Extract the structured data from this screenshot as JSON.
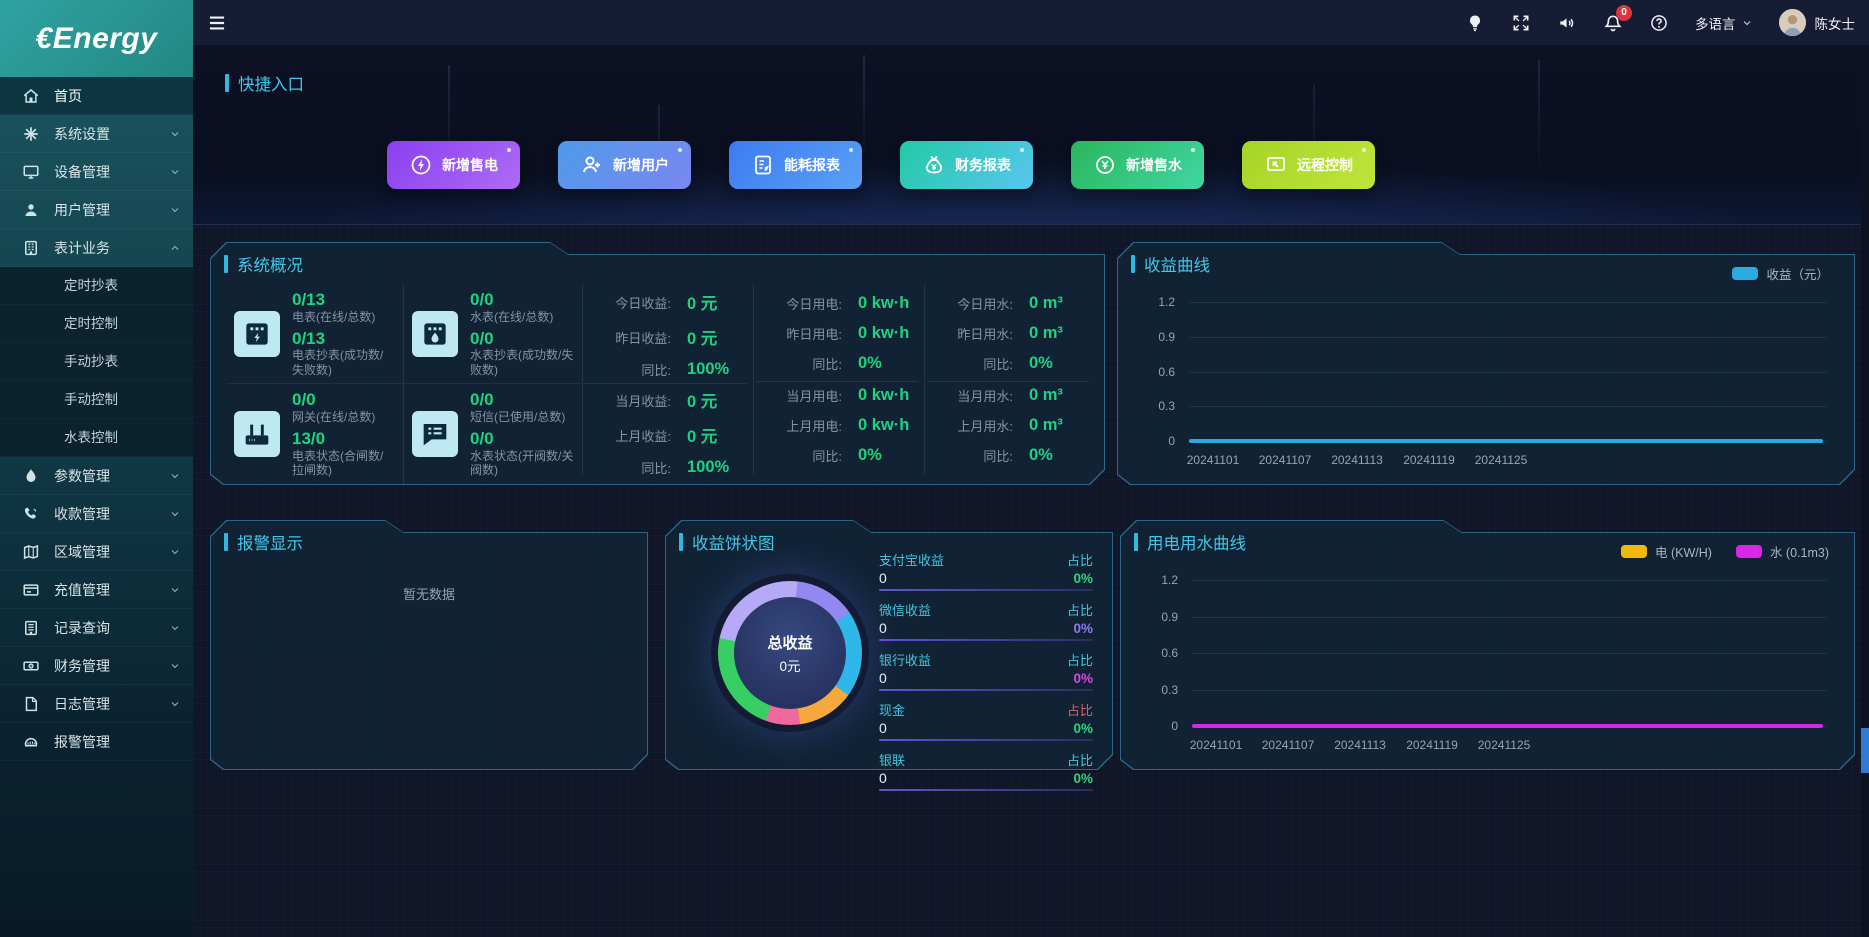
{
  "brand": {
    "logo": "€Energy"
  },
  "topbar": {
    "language_label": "多语言",
    "user_name": "陈女士",
    "notification_count": "0",
    "icons": [
      "bulb-icon",
      "fullscreen-icon",
      "sound-icon",
      "bell-icon",
      "help-icon"
    ]
  },
  "sidebar": {
    "items": [
      {
        "label": "首页",
        "icon": "home-icon",
        "active": true
      },
      {
        "label": "系统设置",
        "icon": "settings-icon",
        "chevron": "down"
      },
      {
        "label": "设备管理",
        "icon": "device-icon",
        "chevron": "down"
      },
      {
        "label": "用户管理",
        "icon": "user-icon",
        "chevron": "down"
      },
      {
        "label": "表计业务",
        "icon": "meter-icon",
        "chevron": "up",
        "expanded": true,
        "children": [
          "定时抄表",
          "定时控制",
          "手动抄表",
          "手动控制",
          "水表控制"
        ]
      },
      {
        "label": "参数管理",
        "icon": "param-icon",
        "chevron": "down"
      },
      {
        "label": "收款管理",
        "icon": "collection-icon",
        "chevron": "down"
      },
      {
        "label": "区域管理",
        "icon": "region-icon",
        "chevron": "down"
      },
      {
        "label": "充值管理",
        "icon": "recharge-icon",
        "chevron": "down"
      },
      {
        "label": "记录查询",
        "icon": "records-icon",
        "chevron": "down"
      },
      {
        "label": "财务管理",
        "icon": "finance-icon",
        "chevron": "down"
      },
      {
        "label": "日志管理",
        "icon": "log-icon",
        "chevron": "down"
      },
      {
        "label": "报警管理",
        "icon": "alarm-icon"
      }
    ]
  },
  "quick_entry": {
    "title": "快捷入口",
    "buttons": [
      {
        "label": "新增售电",
        "icon": "lightning-icon",
        "g1": "#8A3FF0",
        "g2": "#AE6BF5"
      },
      {
        "label": "新增用户",
        "icon": "user-plus-icon",
        "g1": "#4E9BE8",
        "g2": "#7B86F2"
      },
      {
        "label": "能耗报表",
        "icon": "report-icon",
        "g1": "#3C7BF0",
        "g2": "#5AA0F5"
      },
      {
        "label": "财务报表",
        "icon": "moneybag-icon",
        "g1": "#23C9A5",
        "g2": "#58C6F0"
      },
      {
        "label": "新增售水",
        "icon": "coin-icon",
        "g1": "#2BB65C",
        "g2": "#3FD6A3"
      },
      {
        "label": "远程控制",
        "icon": "remote-icon",
        "g1": "#A6D428",
        "g2": "#BFE53A"
      }
    ]
  },
  "panels": {
    "overview": {
      "title": "系统概况",
      "meters": [
        {
          "icon": "electric-meter-icon",
          "stats": [
            {
              "value": "0/13",
              "label": "电表(在线/总数)"
            },
            {
              "value": "0/13",
              "label": "电表抄表(成功数/失败数)"
            }
          ]
        },
        {
          "icon": "water-meter-icon",
          "stats": [
            {
              "value": "0/0",
              "label": "水表(在线/总数)"
            },
            {
              "value": "0/0",
              "label": "水表抄表(成功数/失败数)"
            }
          ]
        },
        {
          "icon": "gateway-icon",
          "stats": [
            {
              "value": "0/0",
              "label": "网关(在线/总数)"
            },
            {
              "value": "13/0",
              "label": "电表状态(合闸数/拉闸数)"
            }
          ]
        },
        {
          "icon": "sms-icon",
          "stats": [
            {
              "value": "0/0",
              "label": "短信(已使用/总数)"
            },
            {
              "value": "0/0",
              "label": "水表状态(开阀数/关阀数)"
            }
          ]
        }
      ],
      "stat_columns": [
        {
          "group1": [
            [
              "今日收益:",
              "0 元"
            ],
            [
              "昨日收益:",
              "0 元"
            ],
            [
              "同比:",
              "100%"
            ]
          ],
          "group2": [
            [
              "当月收益:",
              "0 元"
            ],
            [
              "上月收益:",
              "0 元"
            ],
            [
              "同比:",
              "100%"
            ]
          ]
        },
        {
          "group1": [
            [
              "今日用电:",
              "0 kw·h"
            ],
            [
              "昨日用电:",
              "0 kw·h"
            ],
            [
              "同比:",
              "0%"
            ]
          ],
          "group2": [
            [
              "当月用电:",
              "0 kw·h"
            ],
            [
              "上月用电:",
              "0 kw·h"
            ],
            [
              "同比:",
              "0%"
            ]
          ]
        },
        {
          "group1": [
            [
              "今日用水:",
              "0 m³"
            ],
            [
              "昨日用水:",
              "0 m³"
            ],
            [
              "同比:",
              "0%"
            ]
          ],
          "group2": [
            [
              "当月用水:",
              "0 m³"
            ],
            [
              "上月用水:",
              "0 m³"
            ],
            [
              "同比:",
              "0%"
            ]
          ]
        }
      ]
    },
    "revenue": {
      "title": "收益曲线",
      "chart": {
        "type": "line",
        "legend": [
          {
            "label": "收益（元）",
            "color": "#29ABE2"
          }
        ],
        "y_ticks": [
          "1.2",
          "0.9",
          "0.6",
          "0.3",
          "0"
        ],
        "x_ticks": [
          "20241101",
          "20241107",
          "20241113",
          "20241119",
          "20241125"
        ],
        "line_color": "#29ABE2",
        "series": [
          {
            "name": "收益（元）",
            "values": [
              0,
              0,
              0,
              0,
              0
            ]
          }
        ],
        "ylim": [
          0,
          1.2
        ]
      }
    },
    "alarm": {
      "title": "报警显示",
      "empty_text": "暂无数据"
    },
    "pie": {
      "title": "收益饼状图",
      "center_label": "总收益",
      "center_value": "0元",
      "ring_from": "-40deg",
      "ring_segments": [
        [
          "#B6A9F6",
          46
        ],
        [
          "#9188F0",
          96
        ],
        [
          "#30B7EA",
          166
        ],
        [
          "#F5A83B",
          212
        ],
        [
          "#F0699C",
          240
        ],
        [
          "#37CF63",
          322
        ],
        [
          "#B6A9F6",
          360
        ]
      ],
      "rows": [
        {
          "label": "支付宝收益",
          "value": "0",
          "ratio_label": "占比",
          "ratio": "0%",
          "label_color": "#3EC6E0",
          "ratio_label_color": "#3EC6E0",
          "ratio_color": "#2BD67B"
        },
        {
          "label": "微信收益",
          "value": "0",
          "ratio_label": "占比",
          "ratio": "0%",
          "label_color": "#3EC6E0",
          "ratio_label_color": "#3EC6E0",
          "ratio_color": "#8F7BF0"
        },
        {
          "label": "银行收益",
          "value": "0",
          "ratio_label": "占比",
          "ratio": "0%",
          "label_color": "#3EC6E0",
          "ratio_label_color": "#3EC6E0",
          "ratio_color": "#D948E8"
        },
        {
          "label": "现金",
          "value": "0",
          "ratio_label": "占比",
          "ratio": "0%",
          "label_color": "#3EC6E0",
          "ratio_label_color": "#E06060",
          "ratio_color": "#2BD67B"
        },
        {
          "label": "银联",
          "value": "0",
          "ratio_label": "占比",
          "ratio": "0%",
          "label_color": "#3EC6E0",
          "ratio_label_color": "#3EC6E0",
          "ratio_color": "#2BD67B"
        }
      ]
    },
    "usage": {
      "title": "用电用水曲线",
      "chart": {
        "type": "line",
        "legend": [
          {
            "label": "电 (KW/H)",
            "color": "#F0B90B"
          },
          {
            "label": "水 (0.1m3)",
            "color": "#D926E8"
          }
        ],
        "y_ticks": [
          "1.2",
          "0.9",
          "0.6",
          "0.3",
          "0"
        ],
        "x_ticks": [
          "20241101",
          "20241107",
          "20241113",
          "20241119",
          "20241125"
        ],
        "line_color": "#D926E8",
        "series": [
          {
            "name": "电 (KW/H)",
            "values": [
              0,
              0,
              0,
              0,
              0
            ]
          },
          {
            "name": "水 (0.1m3)",
            "values": [
              0,
              0,
              0,
              0,
              0
            ]
          }
        ],
        "ylim": [
          0,
          1.2
        ]
      }
    }
  }
}
